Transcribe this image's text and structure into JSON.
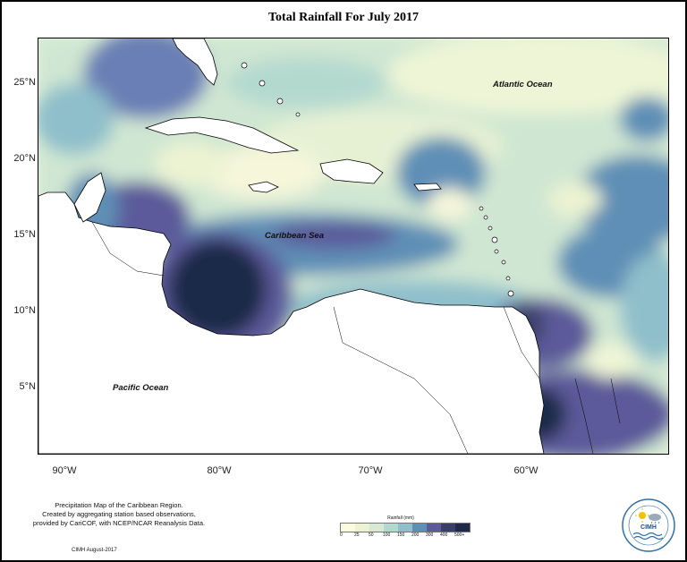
{
  "title": "Total Rainfall For July 2017",
  "map": {
    "lat_ticks": [
      {
        "value": 25,
        "label": "25°N"
      },
      {
        "value": 20,
        "label": "20°N"
      },
      {
        "value": 15,
        "label": "15°N"
      },
      {
        "value": 10,
        "label": "10°N"
      },
      {
        "value": 5,
        "label": "5°N"
      }
    ],
    "lon_ticks": [
      {
        "value": -90,
        "label": "90°W"
      },
      {
        "value": -80,
        "label": "80°W"
      },
      {
        "value": -70,
        "label": "70°W"
      },
      {
        "value": -60,
        "label": "60°W"
      }
    ],
    "labels": {
      "atlantic": "Atlantic Ocean",
      "caribbean": "Caribbean Sea",
      "pacific": "Pacific Ocean"
    },
    "colors": {
      "land": "#ffffff",
      "coastline": "#000000"
    }
  },
  "legend": {
    "title": "Rainfall (mm)",
    "labels": [
      "0",
      "25",
      "50",
      "100",
      "150",
      "200",
      "300",
      "400",
      "500+"
    ],
    "colors": [
      "#fbfbe0",
      "#ecf3d2",
      "#d6ead3",
      "#b3d9cf",
      "#8fbfcb",
      "#5f8fb6",
      "#5c5a9a",
      "#3a3f68",
      "#1f2a48"
    ]
  },
  "caption": {
    "line1": "Precipitation Map of the Caribbean Region.",
    "line2": "Created by aggregating station based observations,",
    "line3": "provided by CariCOF, with NCEP/NCAR Reanalysis Data."
  },
  "credit": "CIMH August-2017",
  "logo": {
    "text": "CIMH",
    "icon_names": [
      "sun-icon",
      "cloud-icon",
      "rain-icon",
      "waves-icon"
    ]
  }
}
